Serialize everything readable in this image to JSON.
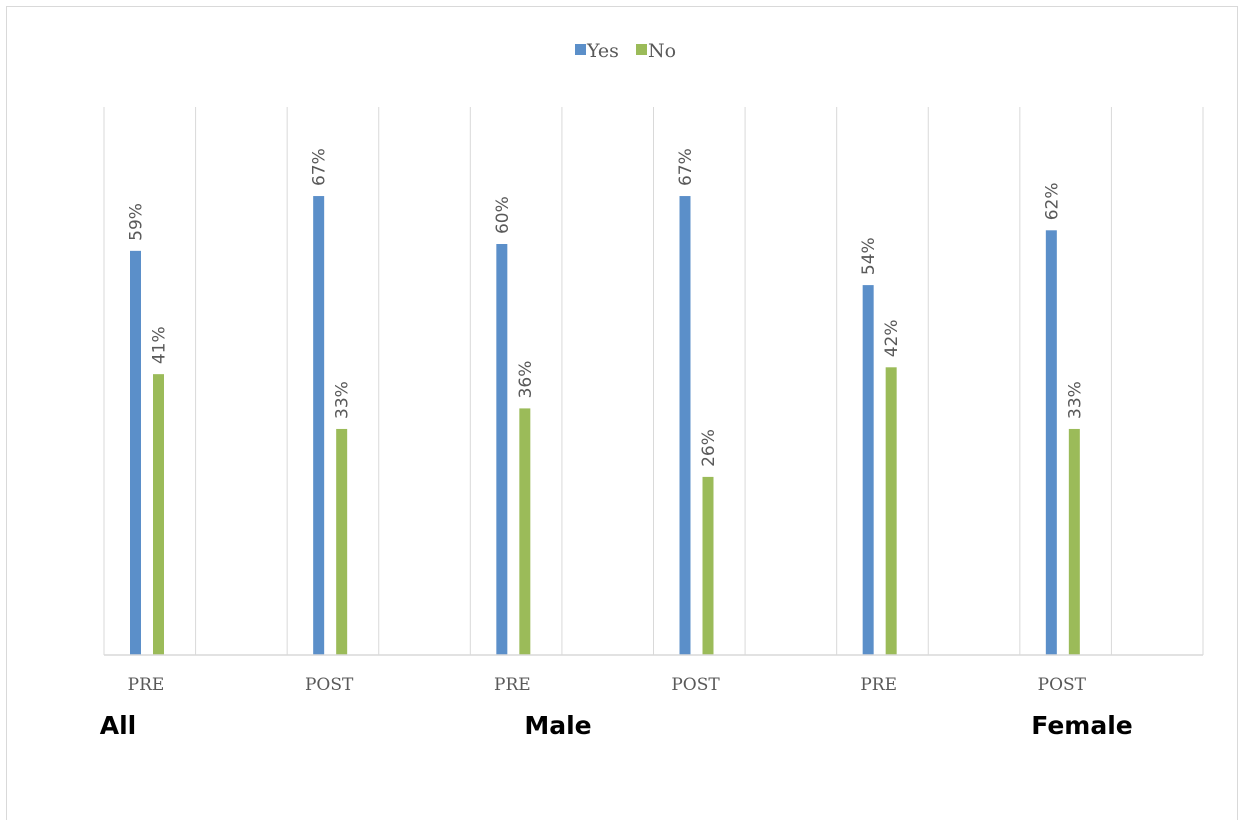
{
  "chart_data": {
    "type": "bar",
    "title": "",
    "ylim": [
      0,
      80
    ],
    "grid": "vertical",
    "legend_position": "top-center",
    "legend": [
      {
        "name": "Yes",
        "color": "#5B8FC9"
      },
      {
        "name": "No",
        "color": "#9BBB59"
      }
    ],
    "groups": [
      {
        "label": "All",
        "categories": [
          "PRE",
          "POST"
        ]
      },
      {
        "label": "Male",
        "categories": [
          "PRE",
          "POST"
        ]
      },
      {
        "label": "Female",
        "categories": [
          "PRE",
          "POST"
        ]
      }
    ],
    "categories": [
      "PRE",
      "POST",
      "PRE",
      "POST",
      "PRE",
      "POST"
    ],
    "series": [
      {
        "name": "Yes",
        "color": "#5B8FC9",
        "values": [
          59,
          67,
          60,
          67,
          54,
          62
        ],
        "labels": [
          "59%",
          "67%",
          "60%",
          "67%",
          "54%",
          "62%"
        ]
      },
      {
        "name": "No",
        "color": "#9BBB59",
        "values": [
          41,
          33,
          36,
          26,
          42,
          33
        ],
        "labels": [
          "41%",
          "33%",
          "36%",
          "26%",
          "42%",
          "33%"
        ]
      }
    ]
  }
}
